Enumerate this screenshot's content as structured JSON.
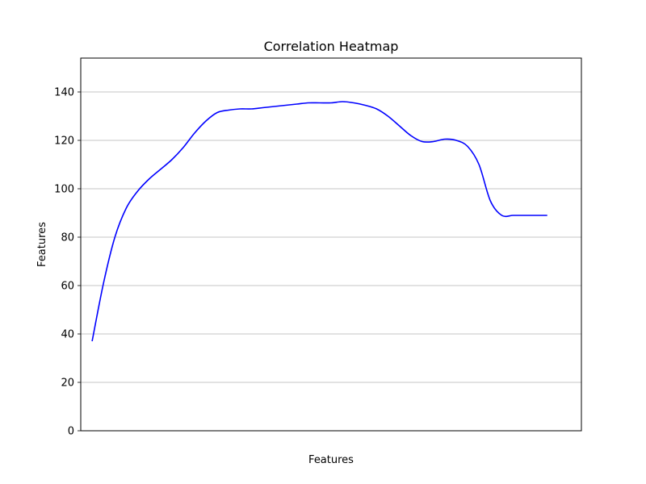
{
  "chart_data": {
    "type": "line",
    "title": "Correlation Heatmap",
    "xlabel": "Features",
    "ylabel": "Features",
    "ylim": [
      0,
      154
    ],
    "xlim": [
      -0.5,
      21.5
    ],
    "yticks": [
      0,
      20,
      40,
      60,
      80,
      100,
      120,
      140
    ],
    "xticks_shown": false,
    "grid": "horizontal",
    "legend": "none",
    "series": [
      {
        "color": "#0000ff",
        "x": [
          0,
          0.5,
          1,
          1.5,
          2,
          2.5,
          3,
          3.5,
          4,
          4.5,
          5,
          5.5,
          6,
          6.5,
          7,
          7.5,
          8,
          8.5,
          9,
          9.5,
          10,
          10.5,
          11,
          11.5,
          12,
          12.5,
          13,
          13.5,
          14,
          14.5,
          15,
          15.5,
          16,
          16.5,
          17,
          17.5,
          18,
          18.5,
          19,
          19.5,
          20
        ],
        "y": [
          37,
          61,
          80,
          92,
          99,
          104,
          108,
          112,
          117,
          123,
          128,
          131.5,
          132.5,
          133,
          133,
          133.5,
          134,
          134.5,
          135,
          135.5,
          135.5,
          135.5,
          136,
          135.5,
          134.5,
          133,
          130,
          126,
          122,
          119.5,
          119.5,
          120.5,
          120,
          117.5,
          110,
          95,
          89,
          89,
          89,
          89,
          89
        ]
      }
    ]
  }
}
